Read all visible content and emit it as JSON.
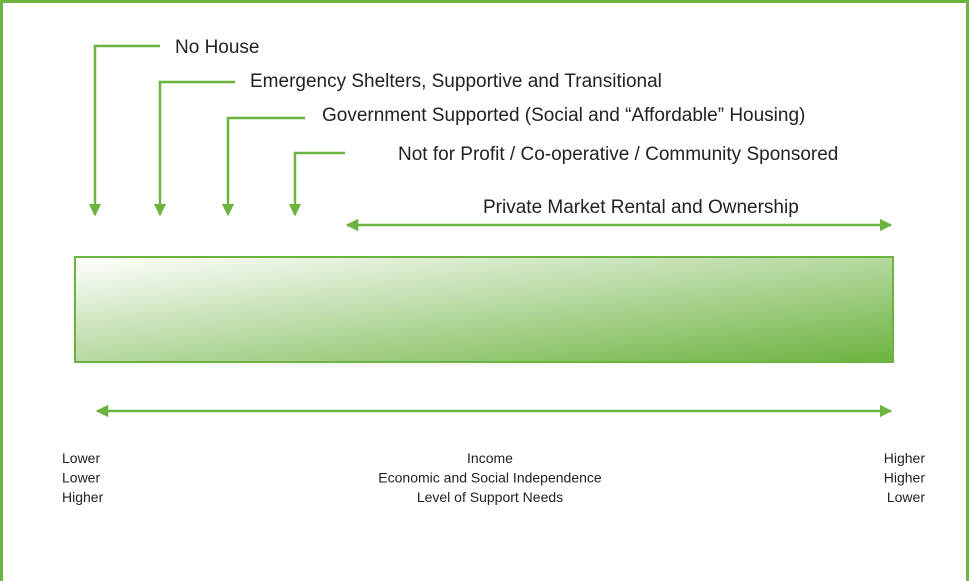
{
  "categories": [
    {
      "label": "No House"
    },
    {
      "label": "Emergency Shelters, Supportive and Transitional"
    },
    {
      "label": "Government Supported (Social and “Affordable” Housing)"
    },
    {
      "label": "Not for Profit / Co-operative / Community Sponsored"
    },
    {
      "label": "Private Market Rental and Ownership"
    }
  ],
  "scale": {
    "rows": [
      {
        "left": "Lower",
        "center": "Income",
        "right": "Higher"
      },
      {
        "left": "Lower",
        "center": "Economic and Social Independence",
        "right": "Higher"
      },
      {
        "left": "Higher",
        "center": "Level of Support Needs",
        "right": "Lower"
      }
    ]
  }
}
